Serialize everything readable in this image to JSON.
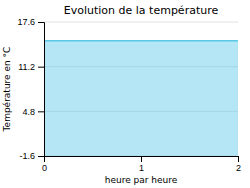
{
  "chart_data": {
    "type": "area",
    "title": "Evolution de la température",
    "xlabel": "heure par heure",
    "ylabel": "Température en °C",
    "x": [
      0,
      2
    ],
    "values": [
      14.9,
      14.9
    ],
    "color": "#5bc8e8",
    "xlim": [
      0,
      2
    ],
    "ylim": [
      -1.6,
      17.6
    ],
    "xticks": [
      0,
      1,
      2
    ],
    "yticks": [
      -1.6,
      4.8,
      11.2,
      17.6
    ],
    "grid": true
  }
}
